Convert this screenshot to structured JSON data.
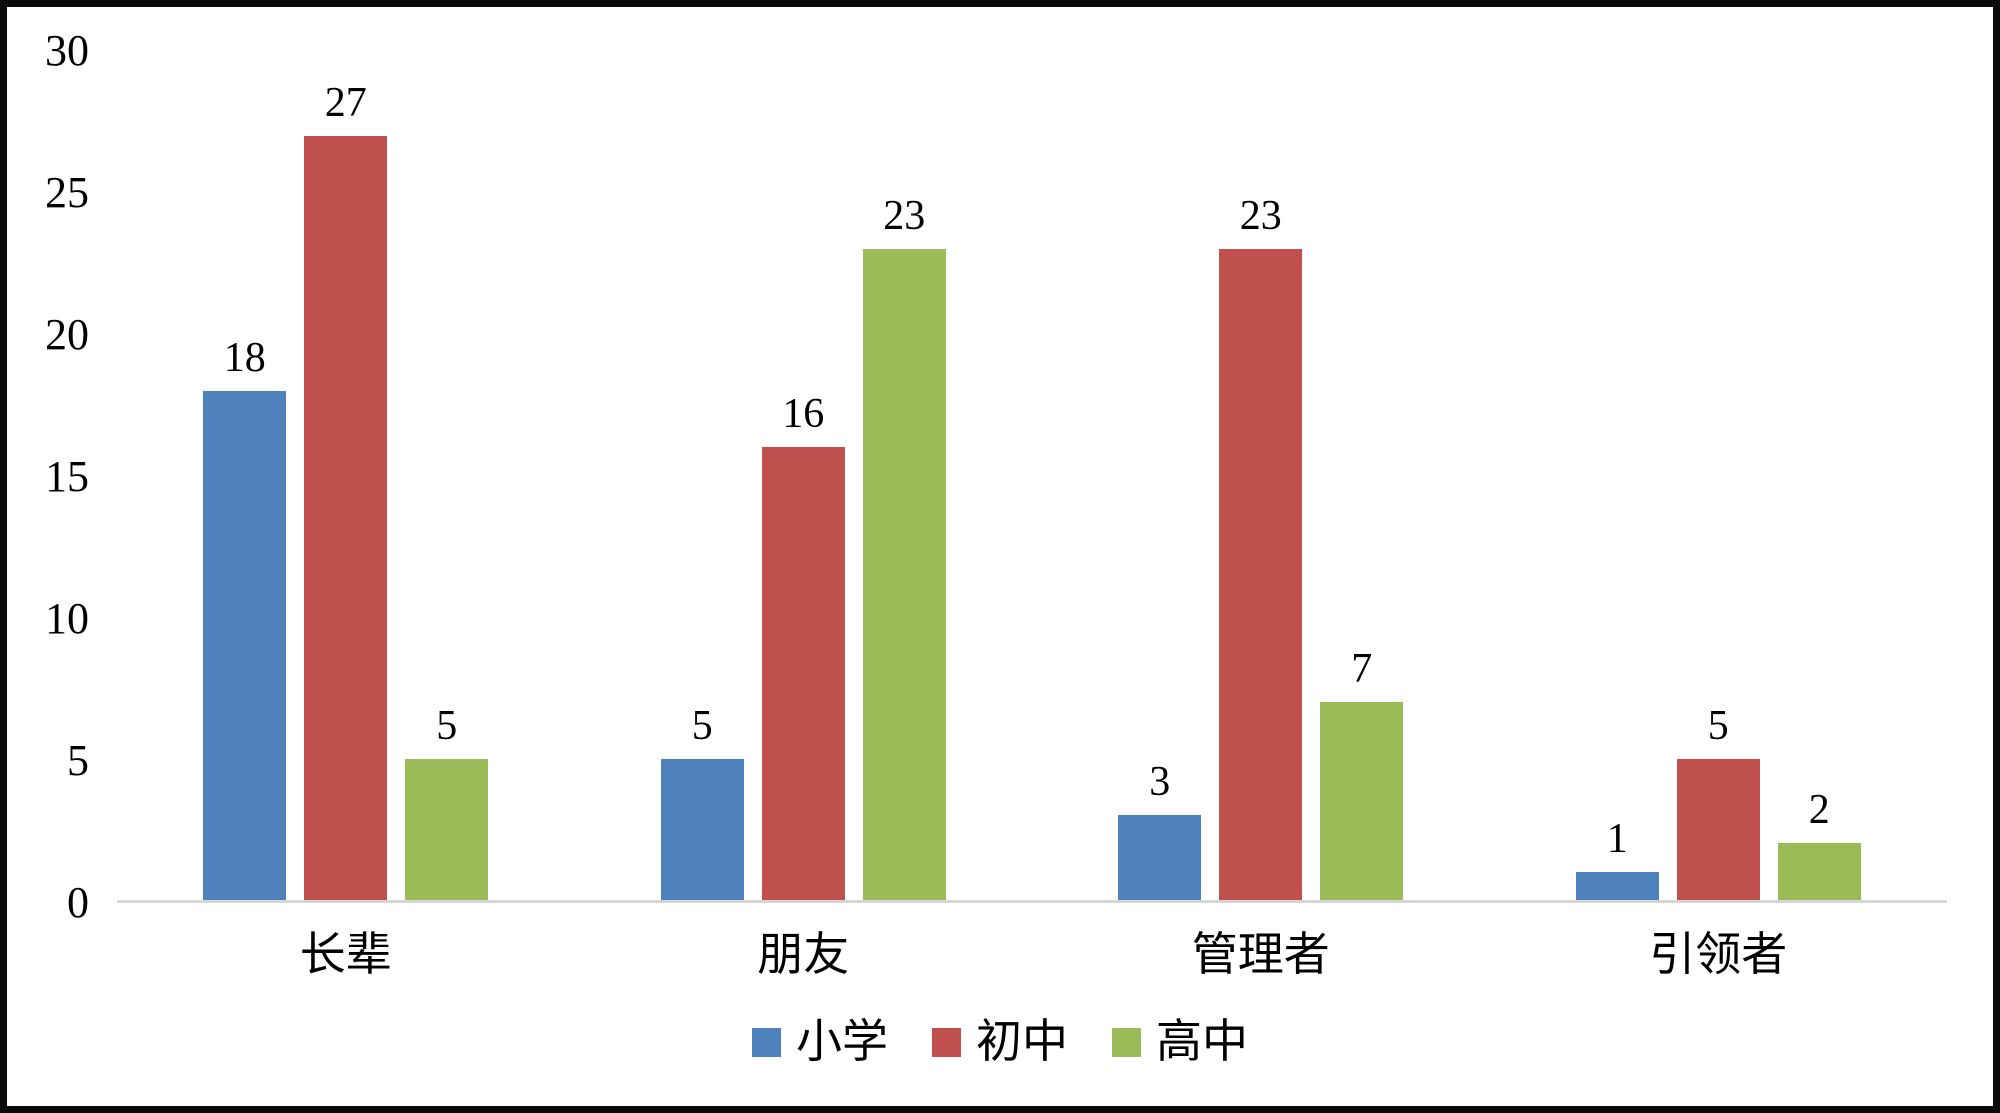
{
  "chart_data": {
    "type": "bar",
    "categories": [
      "长辈",
      "朋友",
      "管理者",
      "引领者"
    ],
    "series": [
      {
        "name": "小学",
        "color": "#4F81BD",
        "values": [
          18,
          5,
          3,
          1
        ]
      },
      {
        "name": "初中",
        "color": "#C0504D",
        "values": [
          27,
          16,
          23,
          5
        ]
      },
      {
        "name": "高中",
        "color": "#9BBB59",
        "values": [
          5,
          23,
          7,
          2
        ]
      }
    ],
    "title": "",
    "xlabel": "",
    "ylabel": "",
    "ylim": [
      0,
      30
    ],
    "yticks": [
      0,
      5,
      10,
      15,
      20,
      25,
      30
    ],
    "grid": false,
    "legend_position": "bottom",
    "data_labels": true
  },
  "colors": {
    "background": "#ffffff",
    "border": "#0a0a0a",
    "axis_line": "#d6d6d6",
    "text": "#000000"
  }
}
